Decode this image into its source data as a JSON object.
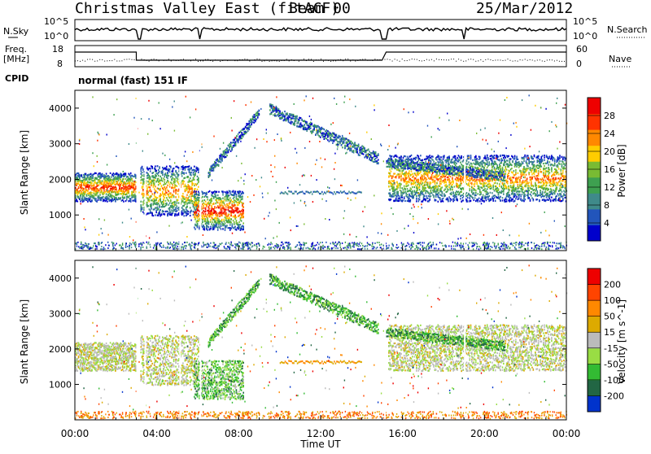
{
  "header": {
    "station": "Christmas Valley East (fitACF)",
    "beam": "Beam 00",
    "date": "25/Mar/2012"
  },
  "side_labels": {
    "nsky": "N.Sky",
    "nsky_ticks": [
      "10^5",
      "10^0"
    ],
    "nsearch": "N.Search",
    "nsearch_ticks": [
      "10^5",
      "10^0"
    ],
    "freq_label": "Freq.",
    "freq_unit": "[MHz]",
    "freq_ticks": [
      "18",
      "8"
    ],
    "nave": "Nave",
    "nave_ticks": [
      "60",
      "0"
    ],
    "cpid": "CPID",
    "cpid_text": "normal (fast) 151 IF"
  },
  "chart_data": [
    {
      "type": "heatmap",
      "name": "power",
      "ylabel": "Slant Range [km]",
      "yticks": [
        "1000",
        "2000",
        "3000",
        "4000"
      ],
      "colorbar_label": "Power [dB]",
      "colorbar_ticks": [
        "4",
        "8",
        "12",
        "16",
        "20",
        "24",
        "28"
      ],
      "colors": [
        "#0000cc",
        "#2255bb",
        "#3f8a8a",
        "#3ea050",
        "#79bb33",
        "#ffcc00",
        "#ff8800",
        "#ff3300",
        "#ee0000"
      ],
      "echo_bands": [
        {
          "t_start": 0.0,
          "t_end": 3.0,
          "range_min": 1400,
          "range_max": 2200,
          "peak_db": 28
        },
        {
          "t_start": 3.2,
          "t_end": 6.0,
          "range_min": 1000,
          "range_max": 2400,
          "peak_db": 24
        },
        {
          "t_start": 5.8,
          "t_end": 8.2,
          "range_min": 600,
          "range_max": 1700,
          "peak_db": 30
        },
        {
          "t_start": 15.3,
          "t_end": 24.0,
          "range_min": 1400,
          "range_max": 2700,
          "peak_db": 24
        }
      ]
    },
    {
      "type": "heatmap",
      "name": "velocity",
      "ylabel": "Slant Range [km]",
      "yticks": [
        "1000",
        "2000",
        "3000",
        "4000"
      ],
      "colorbar_label": "Velocity [m s^-1]",
      "colorbar_ticks": [
        "200",
        "100",
        "50",
        "15",
        "-15",
        "-50",
        "-100",
        "-200"
      ],
      "colors": [
        "#0033cc",
        "#226644",
        "#33bb33",
        "#99dd44",
        "#bbbbbb",
        "#ddaa00",
        "#ff8800",
        "#ff4400",
        "#ee0000"
      ],
      "xticks": [
        "00:00",
        "04:00",
        "08:00",
        "12:00",
        "16:00",
        "20:00",
        "00:00"
      ],
      "xlabel": "Time UT",
      "xlim": [
        0,
        24
      ],
      "ylim": [
        0,
        4500
      ]
    }
  ]
}
